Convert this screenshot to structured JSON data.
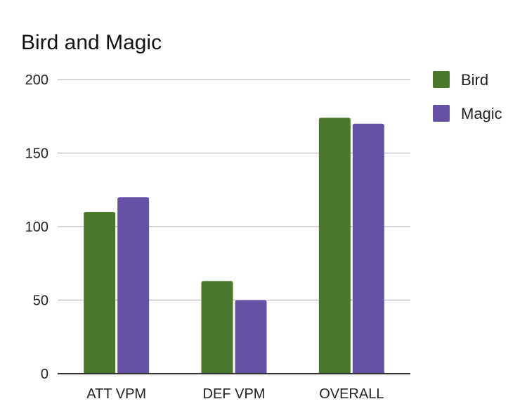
{
  "chart_data": {
    "type": "bar",
    "title": "Bird and Magic",
    "xlabel": "",
    "ylabel": "",
    "categories": [
      "ATT VPM",
      "DEF VPM",
      "OVERALL"
    ],
    "series": [
      {
        "name": "Bird",
        "values": [
          110,
          63,
          174
        ],
        "color": "#4a772b"
      },
      {
        "name": "Magic",
        "values": [
          120,
          50,
          170
        ],
        "color": "#6451a3"
      }
    ],
    "ylim": [
      0,
      200
    ],
    "yticks": [
      0,
      50,
      100,
      150,
      200
    ],
    "grid": true,
    "legend_position": "right"
  }
}
